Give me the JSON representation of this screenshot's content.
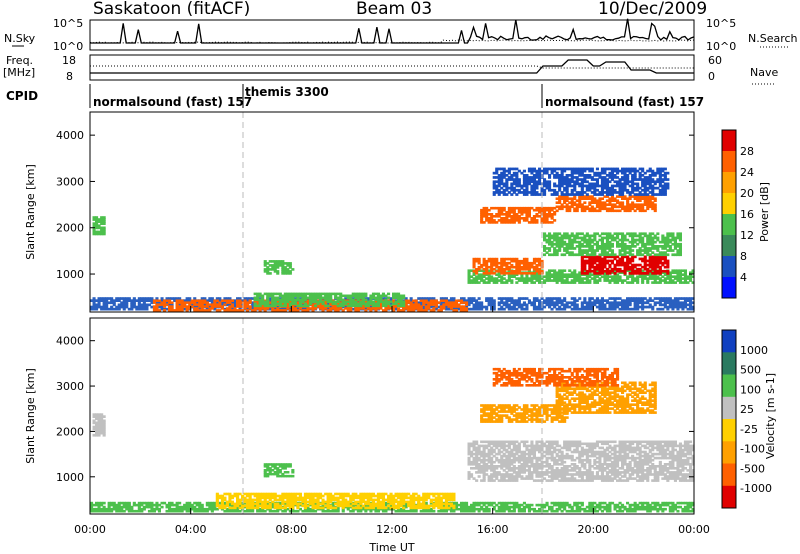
{
  "header": {
    "station": "Saskatoon (fitACF)",
    "beam": "Beam 03",
    "date": "10/Dec/2009"
  },
  "summary_panel": {
    "left_label": "N.Sky",
    "right_label": "N.Search",
    "left_ticks": [
      "10^5",
      "10^0"
    ],
    "right_ticks": [
      "10^5",
      "10^0"
    ]
  },
  "freq_panel": {
    "left_label_1": "Freq.",
    "left_label_2": "[MHz]",
    "right_label": "Nave",
    "left_ticks": [
      "18",
      "8"
    ],
    "right_ticks": [
      "60",
      "0"
    ]
  },
  "cpid": {
    "label": "CPID",
    "segments": [
      {
        "start_h": 0,
        "end_h": 5.8,
        "text": "normalsound (fast) 157"
      },
      {
        "start_h": 5.8,
        "end_h": 18.0,
        "text": "themis 3300"
      },
      {
        "start_h": 18.0,
        "end_h": 24.0,
        "text": "normalsound (fast) 157"
      }
    ]
  },
  "chart_data": [
    {
      "type": "heatmap",
      "name": "power",
      "ylabel": "Slant Range [km]",
      "colorbar_label": "Power [dB]",
      "colorbar_ticks": [
        "28",
        "24",
        "20",
        "16",
        "12",
        "8",
        "4"
      ],
      "colorbar_colors": [
        "#e00000",
        "#ff6000",
        "#ffa000",
        "#ffd000",
        "#4cc04c",
        "#3a8a5a",
        "#1a50c0",
        "#0010ff"
      ],
      "ylim": [
        180,
        4500
      ],
      "yticks": [
        1000,
        2000,
        3000,
        4000
      ],
      "regions": [
        {
          "t": [
            0.0,
            24.0
          ],
          "r": [
            180,
            500
          ],
          "color": "#2a60c0"
        },
        {
          "t": [
            2.5,
            15.0
          ],
          "r": [
            200,
            450
          ],
          "color": "#ff6000"
        },
        {
          "t": [
            6.5,
            12.5
          ],
          "r": [
            300,
            600
          ],
          "color": "#4cc04c"
        },
        {
          "t": [
            0.1,
            0.6
          ],
          "r": [
            1850,
            2250
          ],
          "color": "#4cc04c"
        },
        {
          "t": [
            6.9,
            8.1
          ],
          "r": [
            1000,
            1300
          ],
          "color": "#4cc04c"
        },
        {
          "t": [
            15.0,
            24.0
          ],
          "r": [
            800,
            1100
          ],
          "color": "#4cc04c"
        },
        {
          "t": [
            15.2,
            18.0
          ],
          "r": [
            1000,
            1350
          ],
          "color": "#ff6000"
        },
        {
          "t": [
            15.5,
            18.5
          ],
          "r": [
            2100,
            2450
          ],
          "color": "#ff6000"
        },
        {
          "t": [
            18.5,
            22.5
          ],
          "r": [
            2350,
            2700
          ],
          "color": "#ff6000"
        },
        {
          "t": [
            19.5,
            23.0
          ],
          "r": [
            1000,
            1400
          ],
          "color": "#e00000"
        },
        {
          "t": [
            18.0,
            23.5
          ],
          "r": [
            1400,
            1900
          ],
          "color": "#4cc04c"
        },
        {
          "t": [
            16.0,
            23.0
          ],
          "r": [
            2700,
            3300
          ],
          "color": "#1a50c0"
        }
      ]
    },
    {
      "type": "heatmap",
      "name": "velocity",
      "ylabel": "Slant Range [km]",
      "colorbar_label": "Velocity [m s-1]",
      "colorbar_ticks": [
        "1000",
        "500",
        "100",
        "25",
        "-25",
        "-100",
        "-500",
        "-1000"
      ],
      "colorbar_colors": [
        "#1040c0",
        "#2a7a60",
        "#4cc04c",
        "#c0c0c0",
        "#ffd000",
        "#ffa000",
        "#ff6000",
        "#e00000"
      ],
      "ylim": [
        180,
        4500
      ],
      "yticks": [
        1000,
        2000,
        3000,
        4000
      ],
      "regions": [
        {
          "t": [
            0.0,
            24.0
          ],
          "r": [
            180,
            450
          ],
          "color": "#4cc04c"
        },
        {
          "t": [
            5.0,
            14.5
          ],
          "r": [
            300,
            650
          ],
          "color": "#ffd000"
        },
        {
          "t": [
            0.1,
            0.6
          ],
          "r": [
            1900,
            2400
          ],
          "color": "#c0c0c0"
        },
        {
          "t": [
            6.9,
            8.1
          ],
          "r": [
            1000,
            1300
          ],
          "color": "#4cc04c"
        },
        {
          "t": [
            15.0,
            24.0
          ],
          "r": [
            900,
            1800
          ],
          "color": "#c0c0c0"
        },
        {
          "t": [
            15.5,
            19.0
          ],
          "r": [
            2200,
            2600
          ],
          "color": "#ffa000"
        },
        {
          "t": [
            18.5,
            22.5
          ],
          "r": [
            2400,
            3100
          ],
          "color": "#ffa000"
        },
        {
          "t": [
            16.0,
            21.0
          ],
          "r": [
            3000,
            3400
          ],
          "color": "#ff6000"
        }
      ]
    }
  ],
  "x_axis": {
    "label": "Time UT",
    "ticks": [
      "00:00",
      "04:00",
      "08:00",
      "12:00",
      "16:00",
      "20:00",
      "00:00"
    ]
  }
}
